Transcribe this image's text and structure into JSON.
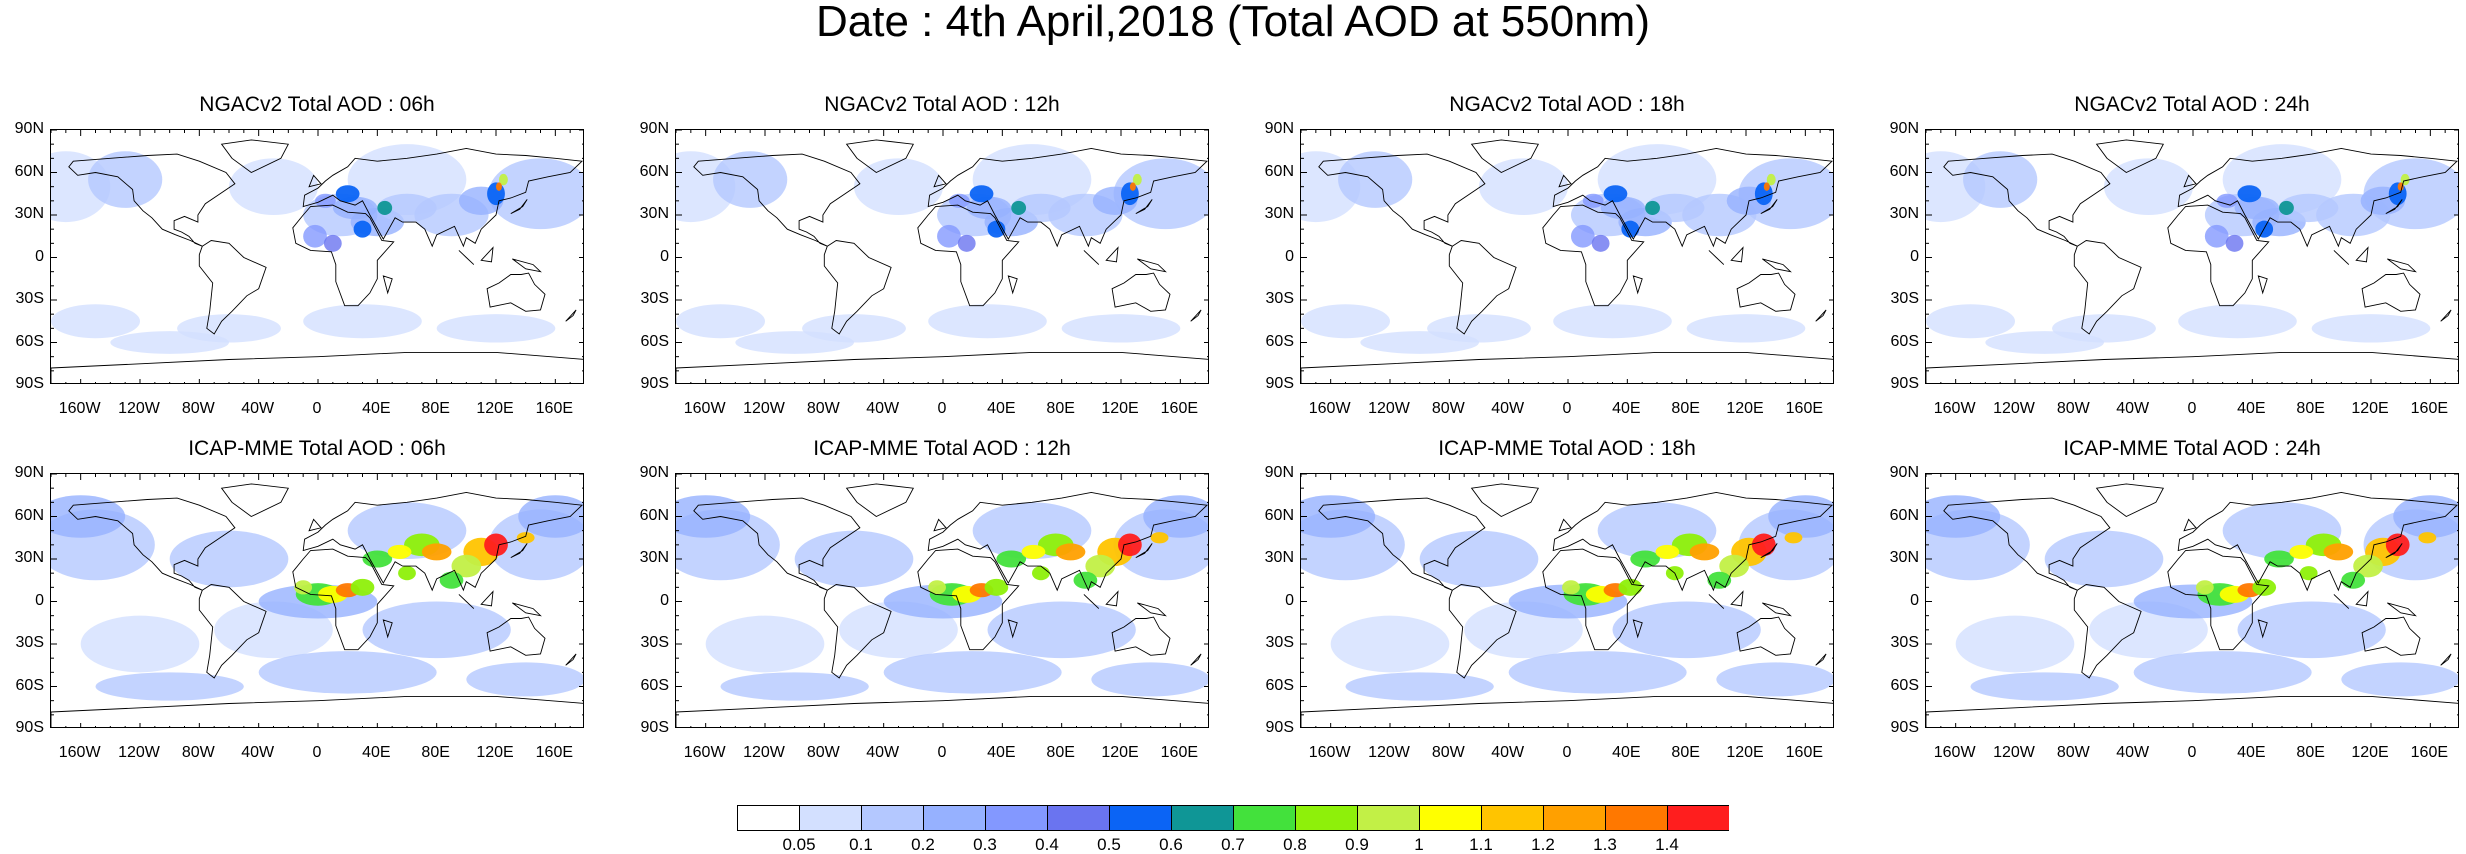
{
  "title": "Date : 4th April,2018 (Total AOD at 550nm)",
  "panels": [
    {
      "title": "NGACv2 Total AOD : 06h",
      "model": "NGACv2",
      "hour": 6
    },
    {
      "title": "NGACv2 Total AOD : 12h",
      "model": "NGACv2",
      "hour": 12
    },
    {
      "title": "NGACv2 Total AOD : 18h",
      "model": "NGACv2",
      "hour": 18
    },
    {
      "title": "NGACv2 Total AOD : 24h",
      "model": "NGACv2",
      "hour": 24
    },
    {
      "title": "ICAP-MME Total AOD : 06h",
      "model": "ICAP-MME",
      "hour": 6
    },
    {
      "title": "ICAP-MME Total AOD : 12h",
      "model": "ICAP-MME",
      "hour": 12
    },
    {
      "title": "ICAP-MME Total AOD : 18h",
      "model": "ICAP-MME",
      "hour": 18
    },
    {
      "title": "ICAP-MME Total AOD : 24h",
      "model": "ICAP-MME",
      "hour": 24
    }
  ],
  "lat_labels": [
    "90N",
    "60N",
    "30N",
    "0",
    "30S",
    "60S",
    "90S"
  ],
  "lon_labels": [
    "160W",
    "120W",
    "80W",
    "40W",
    "0",
    "40E",
    "80E",
    "120E",
    "160E"
  ],
  "colorbar": {
    "labels": [
      "0.05",
      "0.1",
      "0.2",
      "0.3",
      "0.4",
      "0.5",
      "0.6",
      "0.7",
      "0.8",
      "0.9",
      "1",
      "1.1",
      "1.2",
      "1.3",
      "1.4"
    ],
    "colors": [
      "#ffffff",
      "#d3e0ff",
      "#b4c8ff",
      "#96b1ff",
      "#8398ff",
      "#6a74f0",
      "#0b64f5",
      "#0f9696",
      "#43e13c",
      "#8ef00a",
      "#c2f046",
      "#ffff00",
      "#ffc400",
      "#ffa000",
      "#ff7800",
      "#ff1e1e"
    ]
  }
}
